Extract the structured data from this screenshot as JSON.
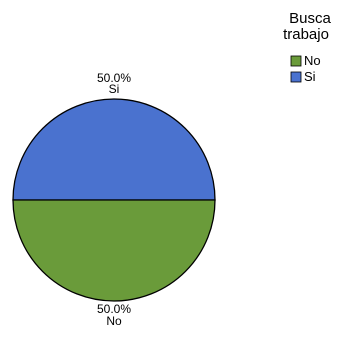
{
  "chart_data": {
    "type": "pie",
    "categories": [
      "Si",
      "No"
    ],
    "values": [
      50.0,
      50.0
    ],
    "value_labels": [
      "50.0%",
      "50.0%"
    ],
    "colors": [
      "#4a72cf",
      "#6a9b3a"
    ],
    "legend": {
      "title_lines": [
        "Busca",
        "trabajo"
      ],
      "position": "top-right",
      "entries": [
        {
          "label": "No",
          "color": "#6a9b3a"
        },
        {
          "label": "Si",
          "color": "#4a72cf"
        }
      ]
    }
  }
}
